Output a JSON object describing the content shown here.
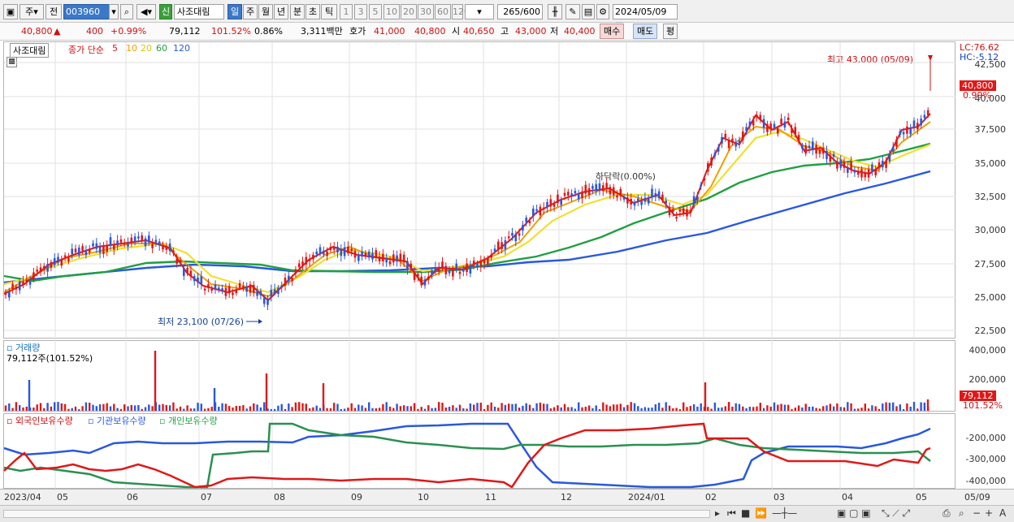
{
  "toolbar": {
    "period_main": "주",
    "prev": "전",
    "stock_code": "003960",
    "badge_new": "신",
    "stock_name": "사조대림",
    "periods": [
      "일",
      "주",
      "월",
      "년",
      "분",
      "초",
      "틱"
    ],
    "period_selected": "일",
    "intervals": [
      "1",
      "3",
      "5",
      "10",
      "20",
      "30",
      "60",
      "120"
    ],
    "count": "265",
    "count_total": "/600",
    "date": "2024/05/09"
  },
  "info": {
    "price": "40,800",
    "change": "400",
    "change_pct": "+0.99%",
    "volume": "79,112",
    "volume_ratio": "101.52%",
    "turnover": "0.86%",
    "amount": "3,311백만",
    "bid_label": "호가",
    "bid1": "41,000",
    "bid2": "40,800",
    "open_label": "시",
    "open": "40,650",
    "high_label": "고",
    "high": "43,000",
    "low_label": "저",
    "low": "40,400",
    "buy": "매수",
    "sell": "매도",
    "eval": "평"
  },
  "price_pane": {
    "name": "사조대림",
    "ma_label": "종가 단순",
    "ma_periods": [
      "5",
      "10",
      "20",
      "60",
      "120"
    ],
    "ma_colors": [
      "#e01818",
      "#f0a000",
      "#f0e030",
      "#20a040",
      "#2858e0"
    ],
    "lc": "LC:76.62",
    "hc": "HC:-5.12",
    "y_ticks": [
      "42,500",
      "40,000",
      "37,500",
      "35,000",
      "32,500",
      "30,000",
      "27,500",
      "25,000",
      "22,500"
    ],
    "high_note": "최고 43,000 (05/09)",
    "low_note": "최저 23,100 (07/26)",
    "current_tag": "40,800",
    "current_pct": "0.99%",
    "drop_note": "하닥락(0.00%)"
  },
  "volume_pane": {
    "title": "거래량",
    "value": "79,112주(101.52%)",
    "y_ticks": [
      "400,000",
      "200,000"
    ],
    "current_tag": "79,112",
    "current_pct": "101.52%"
  },
  "holders_pane": {
    "foreign": "외국인보유수량",
    "institution": "기관보유수량",
    "individual": "개인보유수량",
    "y_ticks": [
      "-200,000",
      "-300,000",
      "-400,000"
    ]
  },
  "dates": [
    "2023/04",
    "05",
    "06",
    "07",
    "08",
    "09",
    "10",
    "11",
    "12",
    "2024/01",
    "02",
    "03",
    "04",
    "05",
    "05/09"
  ]
}
